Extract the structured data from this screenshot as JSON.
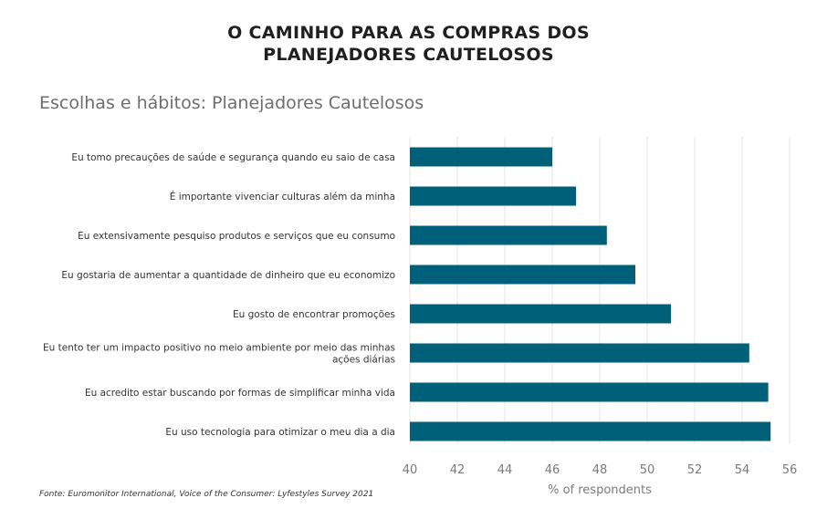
{
  "header": {
    "title_line1": "O CAMINHO PARA AS COMPRAS DOS",
    "title_line2": "PLANEJADORES CAUTELOSOS"
  },
  "chart_data": {
    "type": "bar",
    "orientation": "horizontal",
    "title": "Escolhas e hábitos: Planejadores Cautelosos",
    "xlabel": "% of respondents",
    "ylabel": "",
    "xlim": [
      40,
      56
    ],
    "xticks": [
      40,
      42,
      44,
      46,
      48,
      50,
      52,
      54,
      56
    ],
    "grid": "vertical",
    "bar_color": "#00607a",
    "categories": [
      [
        "Eu tomo precauções de saúde e segurança quando eu saio de casa"
      ],
      [
        "É importante vivenciar culturas além da minha"
      ],
      [
        "Eu extensivamente pesquiso produtos e serviços que eu consumo"
      ],
      [
        "Eu gostaria de aumentar a quantidade de dinheiro que eu economizo"
      ],
      [
        "Eu gosto de encontrar promoções"
      ],
      [
        "Eu tento ter um impacto positivo no meio ambiente por meio das minhas",
        "ações diárias"
      ],
      [
        "Eu acredito estar buscando por formas de simplificar minha vida"
      ],
      [
        "Eu uso tecnologia para otimizar o meu dia a dia"
      ]
    ],
    "values": [
      46.0,
      47.0,
      48.3,
      49.5,
      51.0,
      54.3,
      55.1,
      55.2
    ]
  },
  "footer": {
    "source": "Fonte: Euromonitor International, Voice of the Consumer: Lyfestyles Survey 2021"
  }
}
